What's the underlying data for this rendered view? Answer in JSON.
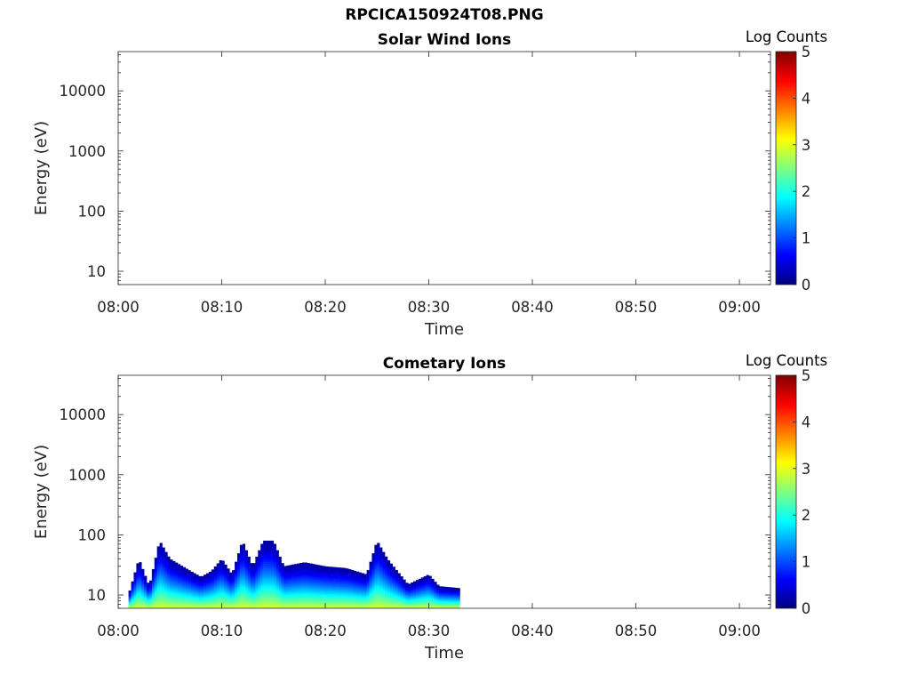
{
  "figure_title": "RPCICA150924T08.PNG",
  "colors": {
    "axis": "#262626",
    "title": "#000000",
    "colormap": [
      "#00007f",
      "#0000ff",
      "#007fff",
      "#00ffff",
      "#7fff7f",
      "#ffff00",
      "#ff7f00",
      "#ff0000",
      "#7f0000"
    ]
  },
  "chart_data": [
    {
      "type": "heatmap",
      "title": "Solar Wind Ions",
      "xlabel": "Time",
      "ylabel": "Energy (eV)",
      "y_scale": "log",
      "ylim": [
        6,
        45000
      ],
      "xlim": [
        "08:00",
        "09:03"
      ],
      "x_ticks": [
        "08:00",
        "08:10",
        "08:20",
        "08:30",
        "08:40",
        "08:50",
        "09:00"
      ],
      "y_ticks": [
        "10",
        "100",
        "1000",
        "10000"
      ],
      "colorbar": {
        "label": "Log Counts",
        "range": [
          0,
          5
        ],
        "ticks": [
          "0",
          "1",
          "2",
          "3",
          "4",
          "5"
        ]
      },
      "cells": []
    },
    {
      "type": "heatmap",
      "title": "Cometary Ions",
      "xlabel": "Time",
      "ylabel": "Energy (eV)",
      "y_scale": "log",
      "ylim": [
        6,
        45000
      ],
      "xlim": [
        "08:00",
        "09:03"
      ],
      "x_ticks": [
        "08:00",
        "08:10",
        "08:20",
        "08:30",
        "08:40",
        "08:50",
        "09:00"
      ],
      "y_ticks": [
        "10",
        "100",
        "1000",
        "10000"
      ],
      "colorbar": {
        "label": "Log Counts",
        "range": [
          0,
          5
        ],
        "ticks": [
          "0",
          "1",
          "2",
          "3",
          "4",
          "5"
        ]
      },
      "data_time_range": [
        "08:01",
        "08:33"
      ],
      "envelope": [
        {
          "t": "08:01",
          "e_max": 10
        },
        {
          "t": "08:02",
          "e_max": 40
        },
        {
          "t": "08:03",
          "e_max": 14
        },
        {
          "t": "08:04",
          "e_max": 80
        },
        {
          "t": "08:05",
          "e_max": 40
        },
        {
          "t": "08:07",
          "e_max": 25
        },
        {
          "t": "08:08",
          "e_max": 20
        },
        {
          "t": "08:09",
          "e_max": 25
        },
        {
          "t": "08:10",
          "e_max": 40
        },
        {
          "t": "08:11",
          "e_max": 22
        },
        {
          "t": "08:12",
          "e_max": 80
        },
        {
          "t": "08:13",
          "e_max": 30
        },
        {
          "t": "08:14",
          "e_max": 80
        },
        {
          "t": "08:15",
          "e_max": 80
        },
        {
          "t": "08:16",
          "e_max": 30
        },
        {
          "t": "08:18",
          "e_max": 35
        },
        {
          "t": "08:20",
          "e_max": 30
        },
        {
          "t": "08:22",
          "e_max": 28
        },
        {
          "t": "08:24",
          "e_max": 22
        },
        {
          "t": "08:25",
          "e_max": 80
        },
        {
          "t": "08:26",
          "e_max": 40
        },
        {
          "t": "08:28",
          "e_max": 15
        },
        {
          "t": "08:30",
          "e_max": 22
        },
        {
          "t": "08:31",
          "e_max": 14
        },
        {
          "t": "08:33",
          "e_max": 13
        }
      ],
      "peak_log_counts": 2.8
    }
  ]
}
